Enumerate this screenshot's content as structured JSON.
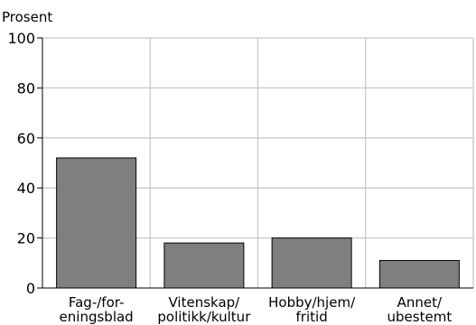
{
  "chart_data": {
    "type": "bar",
    "ylabel": "Prosent",
    "ylim": [
      0,
      100
    ],
    "yticks": [
      0,
      20,
      40,
      60,
      80,
      100
    ],
    "grid": true,
    "categories": [
      [
        "Fag-/for-",
        "eningsblad"
      ],
      [
        "Vitenskap/",
        "politikk/kultur"
      ],
      [
        "Hobby/hjem/",
        "fritid"
      ],
      [
        "Annet/",
        "ubestemt"
      ]
    ],
    "values": [
      52,
      18,
      20,
      11
    ],
    "colors": {
      "bar": "#7f7f7f",
      "bar_outline": "#000000",
      "grid": "#c8c8c8",
      "axis": "#000000"
    }
  }
}
